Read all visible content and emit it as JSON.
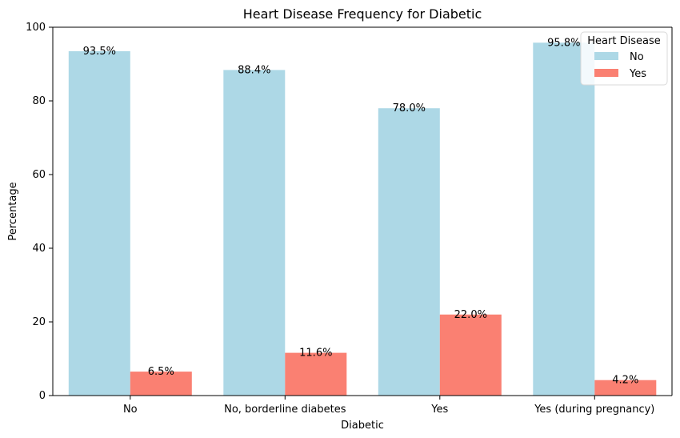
{
  "chart_data": {
    "type": "bar",
    "title": "Heart Disease Frequency for Diabetic",
    "xlabel": "Diabetic",
    "ylabel": "Percentage",
    "categories": [
      "No",
      "No, borderline diabetes",
      "Yes",
      "Yes (during pregnancy)"
    ],
    "series": [
      {
        "name": "No",
        "color": "#add8e6",
        "values": [
          93.5,
          88.4,
          78.0,
          95.8
        ],
        "labels": [
          "93.5%",
          "88.4%",
          "78.0%",
          "95.8%"
        ]
      },
      {
        "name": "Yes",
        "color": "#fa8072",
        "values": [
          6.5,
          11.6,
          22.0,
          4.2
        ],
        "labels": [
          "6.5%",
          "11.6%",
          "22.0%",
          "4.2%"
        ]
      }
    ],
    "ylim": [
      0,
      100
    ],
    "yticks": [
      0,
      20,
      40,
      60,
      80,
      100
    ],
    "grid": false,
    "legend": {
      "title": "Heart Disease",
      "placement": "top-right"
    }
  }
}
